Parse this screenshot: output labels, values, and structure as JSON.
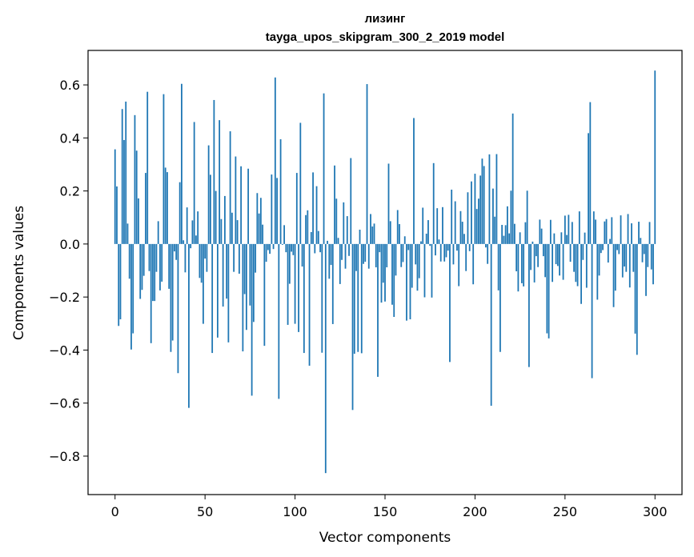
{
  "chart_data": {
    "type": "bar",
    "title_line1": "лизинг",
    "title_line2": "tayga_upos_skipgram_300_2_2019 model",
    "xlabel": "Vector components",
    "ylabel": "Components values",
    "xlim": [
      -15,
      315
    ],
    "ylim": [
      -0.945,
      0.73
    ],
    "xticks": [
      0,
      50,
      100,
      150,
      200,
      250,
      300
    ],
    "xtick_labels": [
      "0",
      "50",
      "100",
      "150",
      "200",
      "250",
      "300"
    ],
    "yticks": [
      -0.8,
      -0.6,
      -0.4,
      -0.2,
      0.0,
      0.2,
      0.4,
      0.6
    ],
    "ytick_labels": [
      "−0.8",
      "−0.6",
      "−0.4",
      "−0.2",
      "0.0",
      "0.2",
      "0.4",
      "0.6"
    ],
    "bar_color": "#1f77b4",
    "series": [
      {
        "name": "лизинг",
        "values": [
          0.357,
          0.217,
          -0.309,
          -0.284,
          0.509,
          0.392,
          0.537,
          0.077,
          -0.131,
          -0.398,
          -0.337,
          0.486,
          0.352,
          0.172,
          -0.207,
          -0.173,
          -0.12,
          0.268,
          0.574,
          -0.102,
          -0.374,
          -0.215,
          -0.215,
          -0.105,
          0.086,
          -0.175,
          -0.142,
          0.565,
          0.288,
          0.271,
          -0.169,
          -0.407,
          -0.364,
          -0.028,
          -0.06,
          -0.487,
          0.233,
          0.604,
          0.014,
          -0.107,
          0.138,
          -0.618,
          -0.016,
          0.089,
          0.46,
          0.032,
          0.123,
          -0.128,
          -0.146,
          -0.301,
          -0.055,
          -0.105,
          0.372,
          0.261,
          -0.411,
          0.543,
          0.2,
          -0.353,
          0.467,
          0.094,
          -0.236,
          0.181,
          -0.206,
          -0.371,
          0.425,
          0.118,
          -0.105,
          0.33,
          0.09,
          -0.112,
          0.293,
          -0.405,
          -0.189,
          -0.324,
          0.284,
          -0.232,
          -0.572,
          -0.294,
          -0.108,
          0.192,
          0.115,
          0.174,
          0.073,
          -0.384,
          -0.067,
          -0.023,
          -0.037,
          0.262,
          -0.019,
          0.628,
          0.249,
          -0.584,
          0.395,
          -0.003,
          0.071,
          -0.031,
          -0.305,
          -0.15,
          -0.029,
          -0.042,
          -0.301,
          0.268,
          -0.332,
          0.457,
          -0.085,
          -0.411,
          0.109,
          0.127,
          -0.459,
          0.045,
          0.27,
          -0.035,
          0.218,
          0.049,
          -0.031,
          -0.41,
          0.568,
          -0.864,
          0.012,
          -0.131,
          -0.079,
          -0.302,
          0.296,
          0.171,
          0.023,
          -0.151,
          -0.06,
          0.157,
          -0.093,
          0.105,
          -0.045,
          0.324,
          -0.626,
          -0.414,
          -0.102,
          -0.407,
          0.054,
          -0.412,
          -0.075,
          -0.067,
          0.603,
          -0.093,
          0.113,
          0.066,
          0.077,
          -0.088,
          -0.501,
          -0.031,
          -0.221,
          -0.146,
          -0.217,
          -0.088,
          0.303,
          0.086,
          -0.229,
          -0.275,
          -0.119,
          0.128,
          0.075,
          -0.087,
          -0.068,
          0.029,
          -0.289,
          -0.023,
          -0.284,
          -0.165,
          0.475,
          -0.077,
          -0.176,
          -0.129,
          0.01,
          0.137,
          -0.201,
          0.039,
          0.09,
          -0.007,
          -0.202,
          0.305,
          -0.043,
          0.135,
          0.017,
          -0.066,
          0.139,
          -0.066,
          -0.05,
          -0.025,
          -0.445,
          0.205,
          -0.077,
          0.161,
          -0.025,
          -0.159,
          0.124,
          0.084,
          0.038,
          -0.102,
          0.195,
          -0.027,
          0.236,
          -0.152,
          0.265,
          0.132,
          0.171,
          0.258,
          0.322,
          0.294,
          -0.013,
          -0.075,
          0.338,
          -0.61,
          0.209,
          0.103,
          0.339,
          -0.175,
          -0.407,
          0.072,
          0.031,
          0.071,
          0.142,
          0.04,
          0.201,
          0.492,
          0.076,
          -0.103,
          -0.179,
          0.044,
          -0.148,
          -0.16,
          0.082,
          0.201,
          -0.464,
          -0.098,
          0.009,
          -0.145,
          -0.046,
          -0.087,
          0.092,
          0.058,
          -0.046,
          -0.125,
          -0.337,
          -0.356,
          0.091,
          -0.143,
          0.04,
          -0.076,
          -0.083,
          -0.119,
          0.044,
          -0.135,
          0.107,
          0.034,
          0.11,
          -0.067,
          0.083,
          -0.105,
          -0.143,
          -0.159,
          0.123,
          -0.226,
          -0.06,
          0.043,
          -0.165,
          0.418,
          0.535,
          -0.506,
          0.123,
          0.092,
          -0.21,
          -0.119,
          -0.034,
          -0.023,
          0.085,
          0.094,
          -0.07,
          0.019,
          0.101,
          -0.238,
          -0.176,
          -0.023,
          -0.038,
          0.108,
          -0.126,
          -0.085,
          -0.105,
          0.113,
          -0.164,
          0.078,
          -0.105,
          -0.338,
          -0.418,
          0.084,
          0.023,
          -0.069,
          -0.038,
          -0.196,
          -0.087,
          0.083,
          -0.096,
          -0.152,
          0.654
        ]
      }
    ]
  }
}
